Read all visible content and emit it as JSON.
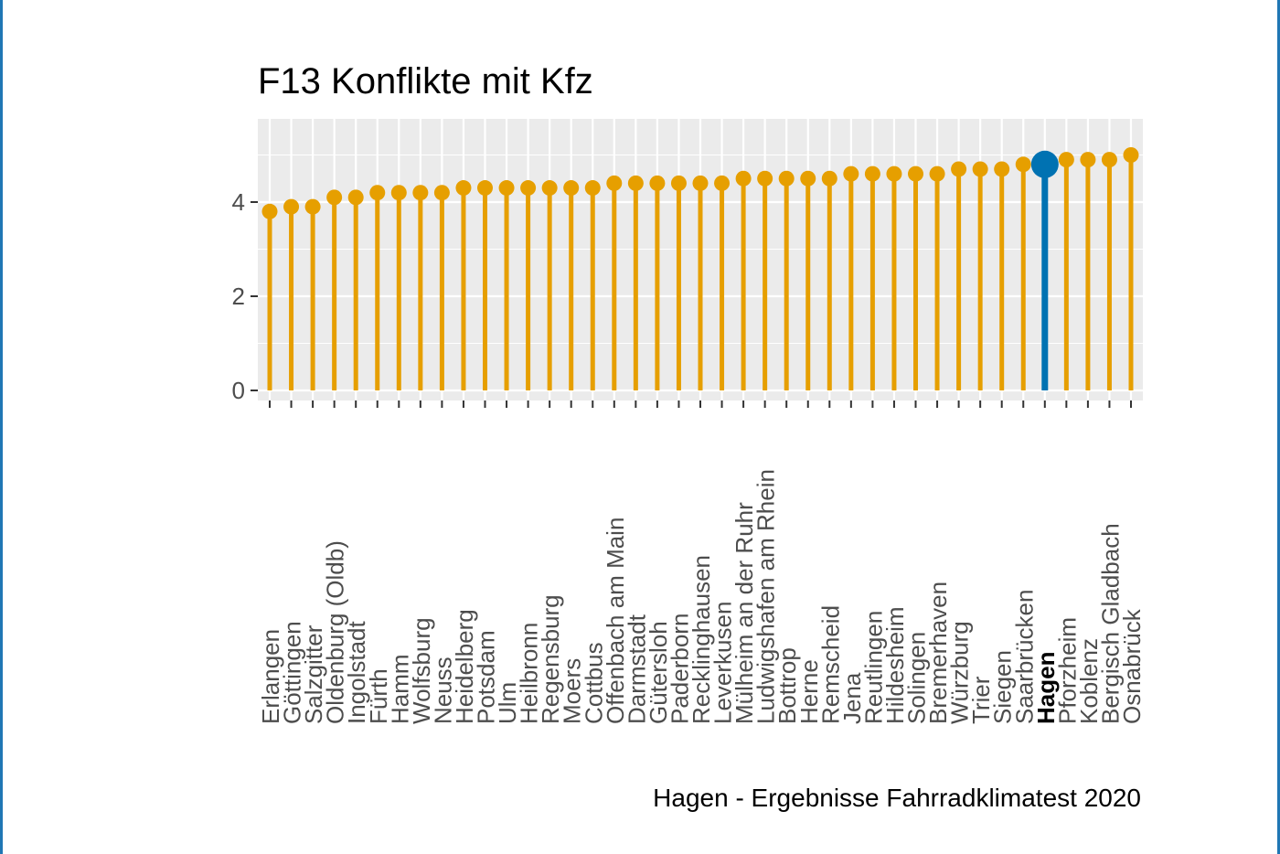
{
  "chart_data": {
    "type": "lollipop",
    "title": "F13 Konflikte mit Kfz",
    "caption": "Hagen - Ergebnisse Fahrradklimatest 2020",
    "xlabel": "",
    "ylabel": "",
    "ylim": [
      0,
      5.6
    ],
    "yticks": [
      "0",
      "2",
      "4"
    ],
    "highlight": "Hagen",
    "grid": true,
    "background": "#ebebeb",
    "colors": {
      "default": "#e69f00",
      "highlight": "#0072b2"
    },
    "categories": [
      "Erlangen",
      "Göttingen",
      "Salzgitter",
      "Oldenburg (Oldb)",
      "Ingolstadt",
      "Fürth",
      "Hamm",
      "Wolfsburg",
      "Neuss",
      "Heidelberg",
      "Potsdam",
      "Ulm",
      "Heilbronn",
      "Regensburg",
      "Moers",
      "Cottbus",
      "Offenbach am Main",
      "Darmstadt",
      "Gütersloh",
      "Paderborn",
      "Recklinghausen",
      "Leverkusen",
      "Mülheim an der Ruhr",
      "Ludwigshafen am Rhein",
      "Bottrop",
      "Herne",
      "Remscheid",
      "Jena",
      "Reutlingen",
      "Hildesheim",
      "Solingen",
      "Bremerhaven",
      "Würzburg",
      "Trier",
      "Siegen",
      "Saarbrücken",
      "Hagen",
      "Pforzheim",
      "Koblenz",
      "Bergisch Gladbach",
      "Osnabrück"
    ],
    "values": [
      3.8,
      3.9,
      3.9,
      4.1,
      4.1,
      4.2,
      4.2,
      4.2,
      4.2,
      4.3,
      4.3,
      4.3,
      4.3,
      4.3,
      4.3,
      4.3,
      4.4,
      4.4,
      4.4,
      4.4,
      4.4,
      4.4,
      4.5,
      4.5,
      4.5,
      4.5,
      4.5,
      4.6,
      4.6,
      4.6,
      4.6,
      4.6,
      4.7,
      4.7,
      4.7,
      4.8,
      4.8,
      4.9,
      4.9,
      4.9,
      5.0
    ]
  }
}
